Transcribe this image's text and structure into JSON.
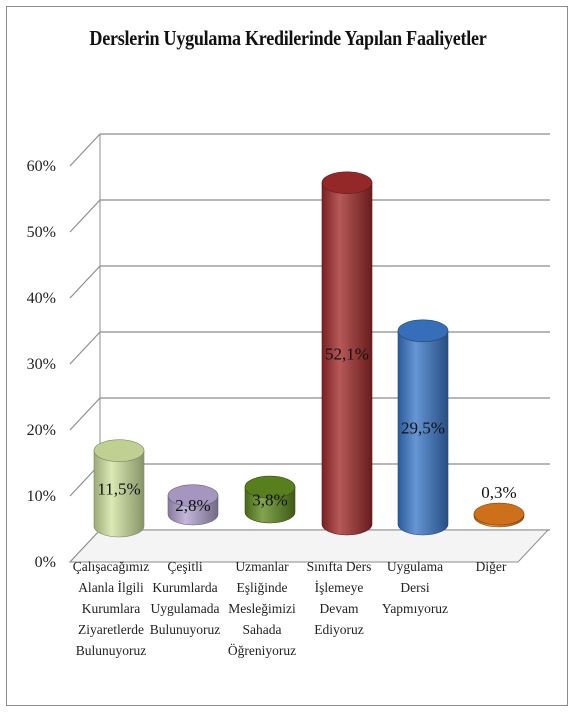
{
  "chart_data": {
    "type": "bar",
    "title": "Derslerin Uygulama Kredilerinde Yapılan Faaliyetler",
    "categories": [
      "Çalışacağımız Alanla İlgili Kurumlara Ziyaretlerde Bulunuyoruz",
      "Çeşitli Kurumlarda Uygulamada Bulunuyoruz",
      "Uzmanlar Eşliğinde Mesleğimizi Sahada Öğreniyoruz",
      "Sınıfta Ders İşlemeye Devam Ediyoruz",
      "Uygulama Dersi Yapmıyoruz",
      "Diğer"
    ],
    "category_lines": [
      "Çalışacağımız\nAlanla İlgili\nKurumlara\nZiyaretlerde\nBulunuyoruz",
      "Çeşitli\nKurumlarda\nUygulamada\nBulunuyoruz",
      "Uzmanlar\nEşliğinde\nMesleğimizi\nSahada\nÖğreniyoruz",
      "Sınıfta Ders\nİşlemeye\nDevam\nEdiyoruz",
      "Uygulama\nDersi\nYapmıyoruz",
      "Diğer"
    ],
    "values": [
      11.5,
      2.8,
      3.8,
      52.1,
      29.5,
      0.3
    ],
    "data_labels": [
      "11,5%",
      "2,8%",
      "3,8%",
      "52,1%",
      "29,5%",
      "0,3%"
    ],
    "ylim": [
      0,
      60
    ],
    "yticks": [
      "0%",
      "10%",
      "20%",
      "30%",
      "40%",
      "50%",
      "60%"
    ],
    "grid": true,
    "colors": [
      "#cfe3a0",
      "#b2a3cf",
      "#5f8a1f",
      "#a12a2a",
      "#3b78c9",
      "#e0791c"
    ]
  }
}
